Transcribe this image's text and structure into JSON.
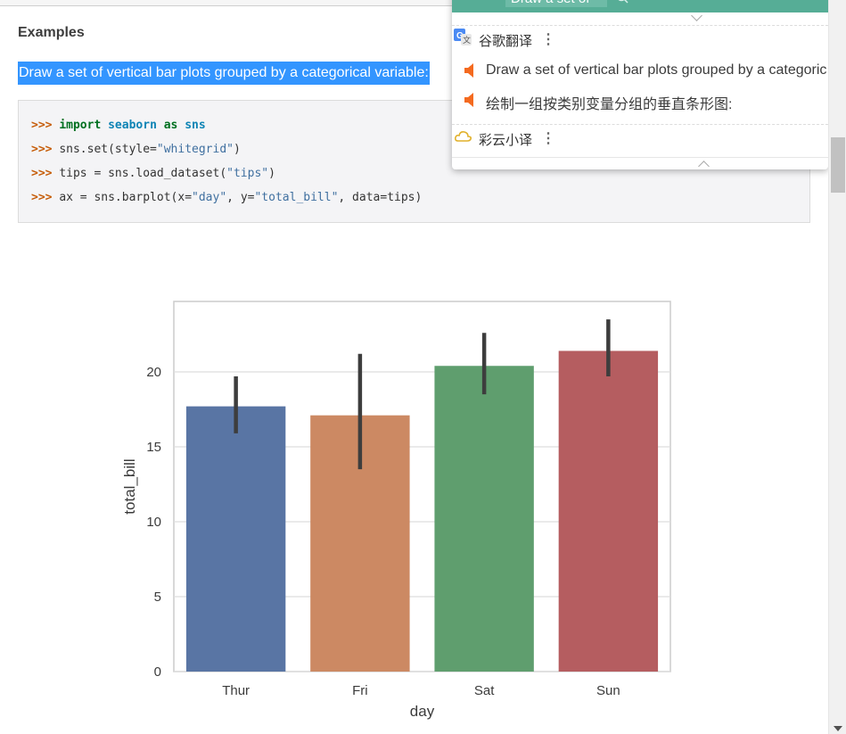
{
  "section": {
    "heading": "Examples",
    "description": "Draw a set of vertical bar plots grouped by a categorical variable:"
  },
  "code": {
    "prompt": ">>>",
    "line1": {
      "kw_import": "import",
      "module": "seaborn",
      "kw_as": "as",
      "alias": "sns"
    },
    "line2": {
      "pre": "sns.set(style=",
      "str": "\"whitegrid\"",
      "post": ")"
    },
    "line3": {
      "pre": "tips = sns.load_dataset(",
      "str": "\"tips\"",
      "post": ")"
    },
    "line4": {
      "pre": "ax = sns.barplot(x=",
      "str1": "\"day\"",
      "mid": ", y=",
      "str2": "\"total_bill\"",
      "post": ", data=tips)"
    }
  },
  "chart_data": {
    "type": "bar",
    "categories": [
      "Thur",
      "Fri",
      "Sat",
      "Sun"
    ],
    "values": [
      17.7,
      17.1,
      20.4,
      21.4
    ],
    "error_low": [
      15.9,
      13.5,
      18.5,
      19.7
    ],
    "error_high": [
      19.7,
      21.2,
      22.6,
      23.5
    ],
    "colors": [
      "#5975a4",
      "#cc8963",
      "#5f9e6e",
      "#b55d60"
    ],
    "xlabel": "day",
    "ylabel": "total_bill",
    "yticks": [
      "0",
      "5",
      "10",
      "15",
      "20"
    ],
    "ylim": [
      0,
      24.7
    ],
    "grid": true
  },
  "popup": {
    "query": "Draw a set of",
    "nav_back": "‹",
    "nav_forward": "›",
    "engines": [
      {
        "name": "谷歌翻译",
        "menu": "⋮",
        "icon": "google-translate-icon"
      },
      {
        "name": "彩云小译",
        "menu": "⋮",
        "icon": "cloud-icon"
      }
    ],
    "result_en": "Draw a set of vertical bar plots grouped by a categoric",
    "result_zh": "绘制一组按类别变量分组的垂直条形图:",
    "speaker_color": "#f46a1f",
    "header_color": "#56ad96"
  }
}
